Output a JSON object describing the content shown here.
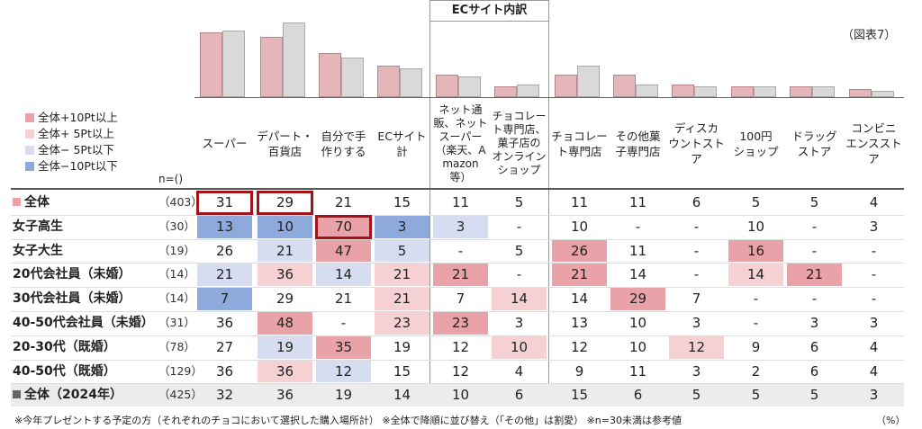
{
  "figure_label": "（図表7）",
  "ec_group_title": "ECサイト内訳",
  "n_header": "n=()",
  "legend": [
    {
      "label": "全体+10Pt以上",
      "color": "#e8a2a8"
    },
    {
      "label": "全体+ 5Pt以上",
      "color": "#f6d1d4"
    },
    {
      "label": "全体− 5Pt以下",
      "color": "#d6ddf0"
    },
    {
      "label": "全体−10Pt以下",
      "color": "#8ea9db"
    }
  ],
  "footnote": "※今年プレゼントする予定の方（それぞれのチョコにおいて選択した購入場所計） ※全体で降順に並び替え（「その他」は割愛） ※n=30未満は参考値",
  "unit": "（%）",
  "chart_data": {
    "type": "table",
    "columns": [
      "スーパー",
      "デパート・百貨店",
      "自分で手作りする",
      "ECサイト計",
      "ネット通販、ネットスーパー（楽天、Amazon等）",
      "チョコレート専門店、菓子店のオンラインショップ",
      "チョコレート専門店",
      "その他菓子専門店",
      "ディスカウントストア",
      "100円ショップ",
      "ドラッグストア",
      "コンビニエンスストア"
    ],
    "column_display": [
      [
        "スーパー"
      ],
      [
        "デパート・",
        "百貨店"
      ],
      [
        "自分で手",
        "作りする"
      ],
      [
        "ECサイト",
        "計"
      ],
      [
        "ネット通",
        "販、ネット",
        "スーパー",
        "（楽天、A",
        "mazon",
        "等）"
      ],
      [
        "チョコレー",
        "ト専門店、",
        "菓子店の",
        "オンライン",
        "ショップ"
      ],
      [
        "チョコレー",
        "ト専門店"
      ],
      [
        "その他菓",
        "子専門店"
      ],
      [
        "ディスカ",
        "ウントスト",
        "ア"
      ],
      [
        "100円",
        "ショップ"
      ],
      [
        "ドラッグ",
        "ストア"
      ],
      [
        "コンビニ",
        "エンススト",
        "ア"
      ]
    ],
    "bar_series": [
      {
        "values": [
          31,
          29,
          21,
          15,
          11,
          5,
          11,
          11,
          6,
          5,
          5,
          4
        ],
        "color": "#e4b6ba"
      },
      {
        "values": [
          32,
          36,
          19,
          14,
          10,
          6,
          15,
          6,
          5,
          5,
          5,
          3
        ],
        "color": "#d9d9d9"
      }
    ],
    "ylim": [
      0,
      38
    ],
    "rows": [
      {
        "label": "全体",
        "n": "（403）",
        "marker": true,
        "values": [
          "31",
          "29",
          "21",
          "15",
          "11",
          "5",
          "11",
          "11",
          "6",
          "5",
          "5",
          "4"
        ],
        "shade": [
          0,
          0,
          0,
          0,
          0,
          0,
          0,
          0,
          0,
          0,
          0,
          0
        ]
      },
      {
        "label": "女子高生",
        "n": "（30）",
        "values": [
          "13",
          "10",
          "70",
          "3",
          "3",
          "-",
          "10",
          "-",
          "-",
          "10",
          "-",
          "3"
        ],
        "shade": [
          -2,
          -2,
          2,
          -2,
          -1,
          0,
          0,
          0,
          0,
          0,
          0,
          0
        ]
      },
      {
        "label": "女子大生",
        "n": "（19）",
        "values": [
          "26",
          "21",
          "47",
          "5",
          "-",
          "5",
          "26",
          "11",
          "-",
          "16",
          "-",
          "-"
        ],
        "shade": [
          0,
          -1,
          2,
          -1,
          0,
          0,
          2,
          0,
          0,
          2,
          0,
          0
        ]
      },
      {
        "label": "20代会社員（未婚）",
        "n": "（14）",
        "values": [
          "21",
          "36",
          "14",
          "21",
          "21",
          "-",
          "21",
          "14",
          "-",
          "14",
          "21",
          "-"
        ],
        "shade": [
          -1,
          1,
          -1,
          1,
          2,
          0,
          2,
          0,
          0,
          1,
          2,
          0
        ]
      },
      {
        "label": "30代会社員（未婚）",
        "n": "（14）",
        "values": [
          "7",
          "29",
          "21",
          "21",
          "7",
          "14",
          "14",
          "29",
          "7",
          "-",
          "-",
          "-"
        ],
        "shade": [
          -2,
          0,
          0,
          1,
          0,
          1,
          0,
          2,
          0,
          0,
          0,
          0
        ]
      },
      {
        "label": "40-50代会社員（未婚）",
        "n": "（31）",
        "values": [
          "36",
          "48",
          "-",
          "23",
          "23",
          "3",
          "13",
          "10",
          "3",
          "-",
          "3",
          "3"
        ],
        "shade": [
          0,
          2,
          0,
          1,
          2,
          0,
          0,
          0,
          0,
          0,
          0,
          0
        ]
      },
      {
        "label": "20-30代（既婚）",
        "n": "（78）",
        "values": [
          "27",
          "19",
          "35",
          "19",
          "12",
          "10",
          "12",
          "10",
          "12",
          "9",
          "6",
          "4"
        ],
        "shade": [
          0,
          -1,
          2,
          0,
          0,
          1,
          0,
          0,
          1,
          0,
          0,
          0
        ]
      },
      {
        "label": "40-50代（既婚）",
        "n": "（129）",
        "values": [
          "36",
          "36",
          "12",
          "15",
          "12",
          "4",
          "9",
          "11",
          "3",
          "2",
          "6",
          "4"
        ],
        "shade": [
          0,
          1,
          -1,
          0,
          0,
          0,
          0,
          0,
          0,
          0,
          0,
          0
        ]
      },
      {
        "label": "全体（2024年）",
        "n": "（425）",
        "marker": true,
        "values": [
          "32",
          "36",
          "19",
          "14",
          "10",
          "6",
          "15",
          "6",
          "5",
          "5",
          "5",
          "3"
        ],
        "shade": [
          0,
          0,
          0,
          0,
          0,
          0,
          0,
          0,
          0,
          0,
          0,
          0
        ]
      }
    ],
    "highlighted": [
      [
        0,
        0
      ],
      [
        0,
        1
      ],
      [
        1,
        2
      ]
    ]
  }
}
